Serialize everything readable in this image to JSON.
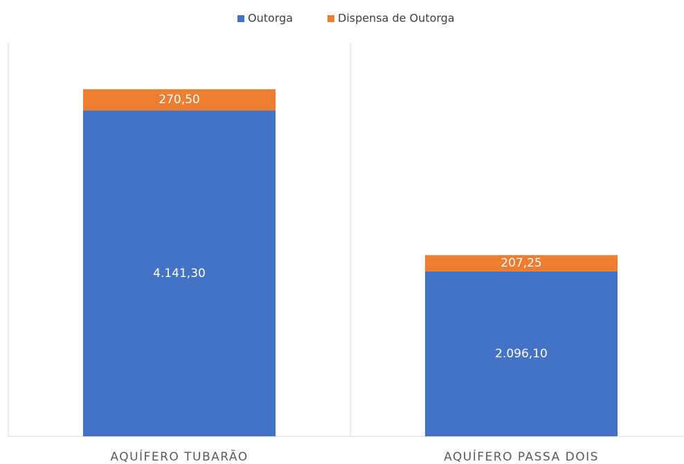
{
  "chart_data": {
    "type": "stacked_bar",
    "categories": [
      "AQUÍFERO TUBARÃO",
      "AQUÍFERO PASSA DOIS"
    ],
    "series": [
      {
        "name": "Outorga",
        "color": "#4472c4",
        "values": [
          4141.3,
          2096.1
        ],
        "value_labels": [
          "4.141,30",
          "2.096,10"
        ]
      },
      {
        "name": "Dispensa de Outorga",
        "color": "#ed7d31",
        "values": [
          270.5,
          207.25
        ],
        "value_labels": [
          "270,50",
          "207,25"
        ]
      }
    ],
    "ylim": [
      0,
      5000
    ],
    "legend": "top"
  }
}
